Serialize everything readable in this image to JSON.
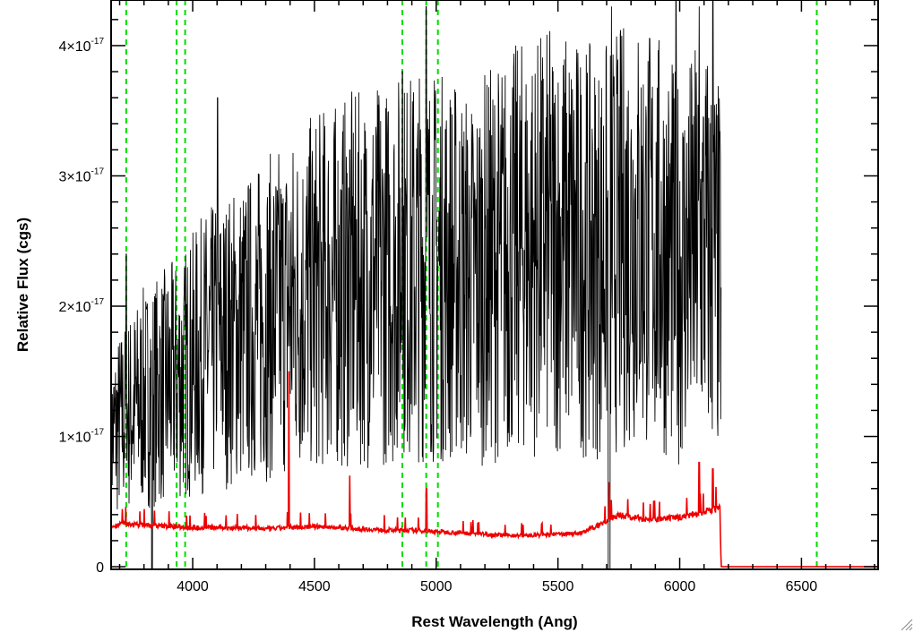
{
  "chart_data": {
    "type": "line",
    "xlabel": "Rest Wavelength (Ang)",
    "ylabel": "Relative Flux (cgs)",
    "xlim": [
      3665,
      6815
    ],
    "ylim": [
      -2e-19,
      4.35e-17
    ],
    "x_ticks": [
      4000,
      4500,
      5000,
      5500,
      6000,
      6500
    ],
    "x_tick_labels": [
      "4000",
      "4500",
      "5000",
      "5500",
      "6000",
      "6500"
    ],
    "x_minor_step": 100,
    "y_ticks": [
      0,
      1e-17,
      2e-17,
      3e-17,
      4e-17
    ],
    "y_tick_labels": [
      {
        "mant": "0",
        "exp": ""
      },
      {
        "mant": "1×10",
        "exp": "-17"
      },
      {
        "mant": "2×10",
        "exp": "-17"
      },
      {
        "mant": "3×10",
        "exp": "-17"
      },
      {
        "mant": "4×10",
        "exp": "-17"
      }
    ],
    "y_minor_step": 2e-18,
    "grid": false,
    "vertical_markers": {
      "color": "#00dd00",
      "style": "dashed",
      "x": [
        3727,
        3934,
        3969,
        4861,
        4959,
        5007,
        6563
      ]
    },
    "series": [
      {
        "color": "#000000",
        "noise_amplitude": 0.55,
        "x": [
          3665,
          3700,
          3750,
          3800,
          3850,
          3900,
          3950,
          4000,
          4050,
          4100,
          4150,
          4200,
          4250,
          4300,
          4350,
          4400,
          4450,
          4500,
          4550,
          4600,
          4650,
          4700,
          4750,
          4800,
          4850,
          4900,
          4950,
          5000,
          5050,
          5100,
          5150,
          5200,
          5250,
          5300,
          5350,
          5400,
          5450,
          5500,
          5550,
          5600,
          5650,
          5700,
          5750,
          5800,
          5850,
          5900,
          5950,
          6000,
          6050,
          6100,
          6150,
          6170
        ],
        "y": [
          1e-17,
          1.1e-17,
          1.2e-17,
          1.3e-17,
          1.35e-17,
          1.4e-17,
          1.45e-17,
          1.55e-17,
          1.65e-17,
          1.7e-17,
          1.75e-17,
          1.8e-17,
          1.85e-17,
          1.9e-17,
          1.95e-17,
          2e-17,
          2.05e-17,
          2.1e-17,
          2.15e-17,
          2.15e-17,
          2.2e-17,
          2.2e-17,
          2.25e-17,
          2.25e-17,
          2.3e-17,
          2.3e-17,
          2.35e-17,
          2.3e-17,
          2.3e-17,
          2.25e-17,
          2.2e-17,
          2.3e-17,
          2.35e-17,
          2.4e-17,
          2.45e-17,
          2.45e-17,
          2.5e-17,
          2.5e-17,
          2.5e-17,
          2.45e-17,
          2.4e-17,
          2.45e-17,
          2.5e-17,
          2.6e-17,
          2.55e-17,
          2.5e-17,
          2.4e-17,
          2.3e-17,
          2.4e-17,
          2.5e-17,
          2.3e-17,
          2.2e-17
        ]
      },
      {
        "color": "#ee0000",
        "noise_amplitude": 0.06,
        "x": [
          3665,
          3700,
          3800,
          3900,
          4000,
          4100,
          4200,
          4300,
          4400,
          4500,
          4600,
          4700,
          4800,
          4900,
          5000,
          5100,
          5200,
          5300,
          5400,
          5500,
          5600,
          5700,
          5750,
          5800,
          5900,
          6000,
          6100,
          6165,
          6170,
          6815
        ],
        "y": [
          3e-18,
          3.3e-18,
          3.2e-18,
          3.1e-18,
          3e-18,
          3e-18,
          3e-18,
          2.9e-18,
          3e-18,
          3.1e-18,
          3e-18,
          2.9e-18,
          2.8e-18,
          2.8e-18,
          2.7e-18,
          2.6e-18,
          2.5e-18,
          2.4e-18,
          2.4e-18,
          2.5e-18,
          2.6e-18,
          3.5e-18,
          4e-18,
          3.8e-18,
          3.6e-18,
          3.8e-18,
          4.2e-18,
          4.5e-18,
          0.0,
          0.0
        ]
      }
    ],
    "spikes": [
      {
        "series": 0,
        "x": [
          3727,
          4102,
          4645,
          4861,
          4959,
          5711,
          5720,
          5985,
          6080,
          6136
        ],
        "y": [
          2.4e-17,
          3.6e-17,
          3.2e-17,
          3.8e-17,
          4.3e-17,
          4.4e-17,
          4.3e-17,
          4.4e-17,
          4.3e-17,
          4.35e-17
        ]
      },
      {
        "series": 1,
        "x": [
          4395,
          4645,
          4960,
          5711,
          6080,
          6136
        ],
        "y": [
          1.5e-17,
          7e-18,
          6e-18,
          6.5e-18,
          8e-18,
          7.5e-18
        ]
      }
    ]
  }
}
